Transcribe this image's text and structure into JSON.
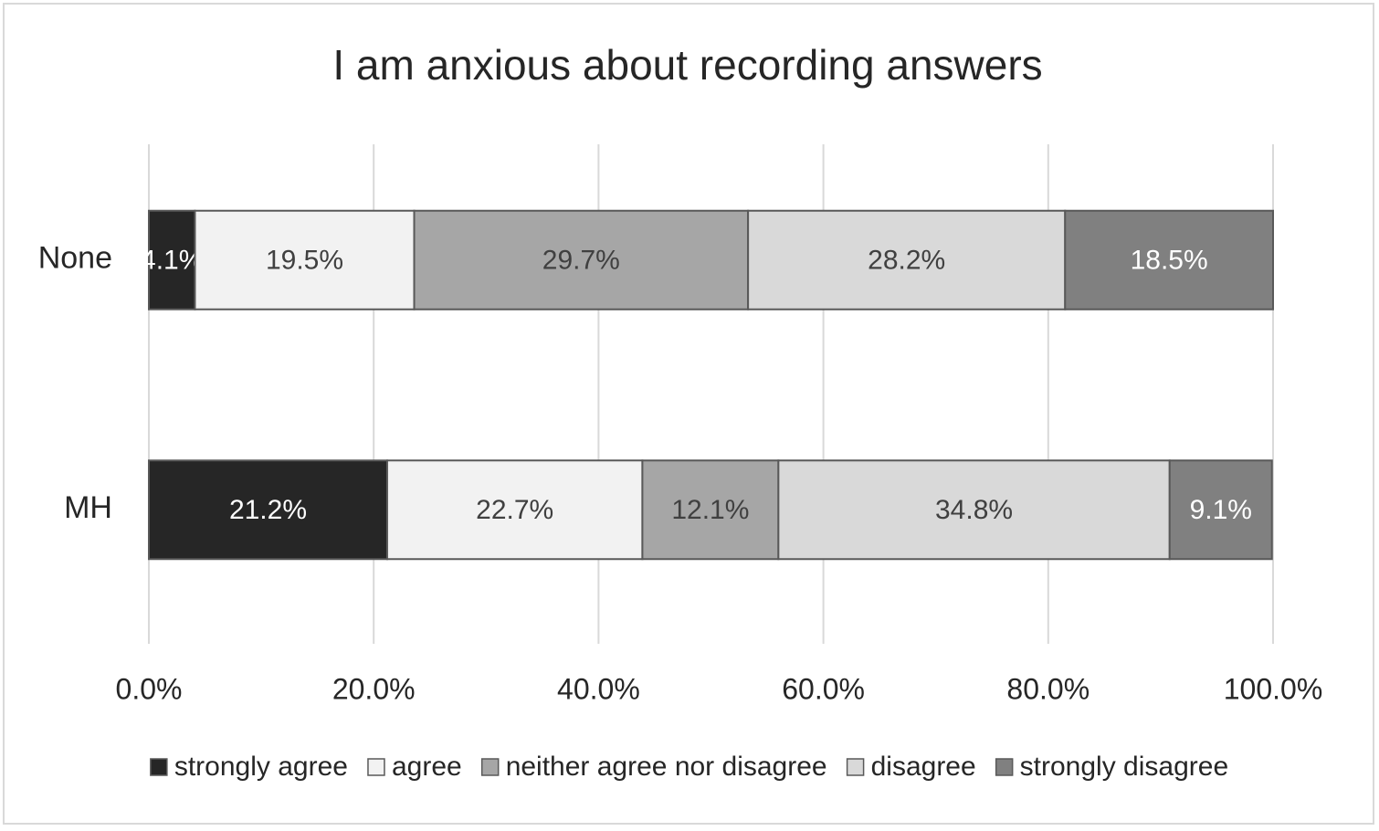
{
  "chart_data": {
    "type": "stacked-bar-horizontal",
    "title": "I am anxious about recording answers",
    "categories": [
      "None",
      "MH"
    ],
    "series": [
      {
        "name": "strongly agree",
        "color": "#262626",
        "values": [
          4.1,
          21.2
        ],
        "value_labels": [
          "4.1%",
          "21.2%"
        ]
      },
      {
        "name": "agree",
        "color": "#f2f2f2",
        "values": [
          19.5,
          22.7
        ],
        "value_labels": [
          "19.5%",
          "22.7%"
        ]
      },
      {
        "name": "neither agree nor disagree",
        "color": "#a6a6a6",
        "values": [
          29.7,
          12.1
        ],
        "value_labels": [
          "29.7%",
          "12.1%"
        ]
      },
      {
        "name": "disagree",
        "color": "#d9d9d9",
        "values": [
          28.2,
          34.8
        ],
        "value_labels": [
          "28.2%",
          "34.8%"
        ]
      },
      {
        "name": "strongly disagree",
        "color": "#808080",
        "values": [
          18.5,
          9.1
        ],
        "value_labels": [
          "18.5%",
          "9.1%"
        ]
      }
    ],
    "xlim": [
      0,
      100
    ],
    "xticks": [
      {
        "value": 0,
        "label": "0.0%"
      },
      {
        "value": 20,
        "label": "20.0%"
      },
      {
        "value": 40,
        "label": "40.0%"
      },
      {
        "value": 60,
        "label": "60.0%"
      },
      {
        "value": 80,
        "label": "80.0%"
      },
      {
        "value": 100,
        "label": "100.0%"
      }
    ],
    "grid": true,
    "legend": "bottom"
  }
}
